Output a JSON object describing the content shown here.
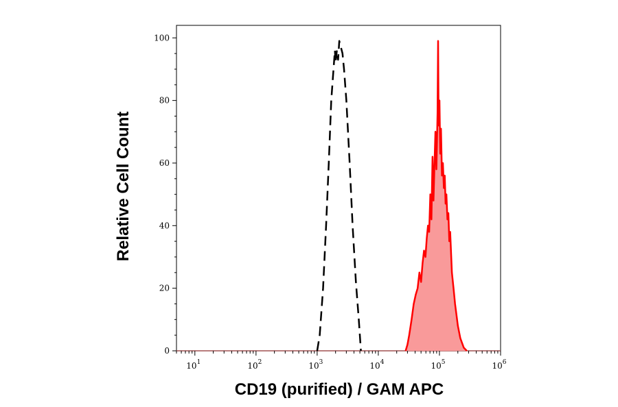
{
  "chart_data": {
    "type": "area",
    "title": "",
    "xlabel": "CD19 (purified) / GAM APC",
    "ylabel": "Relative Cell Count",
    "x_scale": "log",
    "xlim": [
      5,
      1000000
    ],
    "ylim": [
      0,
      104
    ],
    "grid": false,
    "legend": "none",
    "x_ticks": [
      {
        "base": "10",
        "exp": "1",
        "value": 10
      },
      {
        "base": "10",
        "exp": "2",
        "value": 100
      },
      {
        "base": "10",
        "exp": "3",
        "value": 1000
      },
      {
        "base": "10",
        "exp": "4",
        "value": 10000
      },
      {
        "base": "10",
        "exp": "5",
        "value": 100000
      },
      {
        "base": "10",
        "exp": "6",
        "value": 1000000
      }
    ],
    "y_ticks": [
      {
        "label": "0",
        "value": 0
      },
      {
        "label": "20",
        "value": 20
      },
      {
        "label": "40",
        "value": 40
      },
      {
        "label": "60",
        "value": 60
      },
      {
        "label": "80",
        "value": 80
      },
      {
        "label": "100",
        "value": 100
      }
    ],
    "series": [
      {
        "style": "dashed",
        "color": "#000000",
        "points": [
          [
            1000,
            0
          ],
          [
            1100,
            5
          ],
          [
            1250,
            20
          ],
          [
            1400,
            40
          ],
          [
            1550,
            60
          ],
          [
            1700,
            80
          ],
          [
            1850,
            90
          ],
          [
            1950,
            96
          ],
          [
            2000,
            92
          ],
          [
            2100,
            96
          ],
          [
            2200,
            93
          ],
          [
            2300,
            99
          ],
          [
            2450,
            97
          ],
          [
            2600,
            95
          ],
          [
            2750,
            90
          ],
          [
            3000,
            80
          ],
          [
            3400,
            60
          ],
          [
            3800,
            40
          ],
          [
            4300,
            22
          ],
          [
            4800,
            10
          ],
          [
            5200,
            0
          ]
        ]
      },
      {
        "style": "filled",
        "color": "#ff0000",
        "fill": "#f99a9a",
        "points": [
          [
            28000,
            0
          ],
          [
            30000,
            2
          ],
          [
            32000,
            5
          ],
          [
            35000,
            10
          ],
          [
            38000,
            15
          ],
          [
            41000,
            18
          ],
          [
            44000,
            20
          ],
          [
            47000,
            25
          ],
          [
            50000,
            22
          ],
          [
            53000,
            28
          ],
          [
            56000,
            32
          ],
          [
            59000,
            30
          ],
          [
            62000,
            36
          ],
          [
            65000,
            40
          ],
          [
            68000,
            38
          ],
          [
            71000,
            50
          ],
          [
            74000,
            42
          ],
          [
            77000,
            62
          ],
          [
            80000,
            48
          ],
          [
            83000,
            60
          ],
          [
            86000,
            70
          ],
          [
            89000,
            58
          ],
          [
            91000,
            66
          ],
          [
            93000,
            76
          ],
          [
            95000,
            99
          ],
          [
            97000,
            72
          ],
          [
            100000,
            80
          ],
          [
            103000,
            63
          ],
          [
            106000,
            71
          ],
          [
            110000,
            56
          ],
          [
            114000,
            60
          ],
          [
            118000,
            52
          ],
          [
            122000,
            56
          ],
          [
            126000,
            47
          ],
          [
            130000,
            50
          ],
          [
            135000,
            42
          ],
          [
            140000,
            44
          ],
          [
            145000,
            35
          ],
          [
            150000,
            38
          ],
          [
            160000,
            25
          ],
          [
            170000,
            20
          ],
          [
            180000,
            15
          ],
          [
            200000,
            8
          ],
          [
            220000,
            4
          ],
          [
            250000,
            1
          ],
          [
            280000,
            0
          ]
        ]
      }
    ]
  }
}
